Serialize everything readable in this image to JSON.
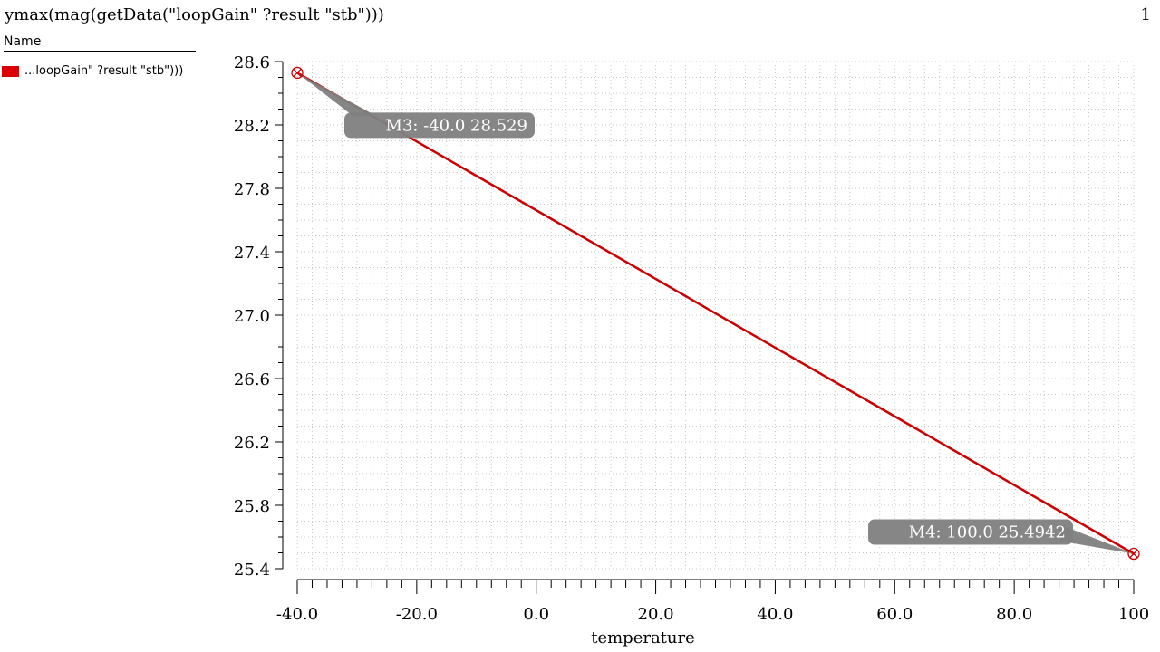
{
  "header": {
    "title": "ymax(mag(getData(\"loopGain\" ?result \"stb\")))",
    "page_number": "1"
  },
  "legend": {
    "header": "Name",
    "items": [
      {
        "label": "...loopGain\" ?result \"stb\")))",
        "color": "#dd0000"
      }
    ]
  },
  "colors": {
    "series": "#cc0000",
    "marker_bubble": "#808080",
    "marker_text": "#ffffff",
    "grid": "#c8c8c8"
  },
  "chart_data": {
    "type": "line",
    "title": "ymax(mag(getData(\"loopGain\" ?result \"stb\")))",
    "xlabel": "temperature",
    "ylabel": "",
    "xlim": [
      -40,
      100
    ],
    "ylim": [
      25.4,
      28.6
    ],
    "xticks": [
      -40,
      -20,
      0,
      20,
      40,
      60,
      80,
      100
    ],
    "xtick_labels": [
      "-40.0",
      "-20.0",
      "0.0",
      "20.0",
      "40.0",
      "60.0",
      "80.0",
      "100"
    ],
    "yticks": [
      25.4,
      25.8,
      26.2,
      26.6,
      27.0,
      27.4,
      27.8,
      28.2,
      28.6
    ],
    "ytick_labels": [
      "25.4",
      "25.8",
      "26.2",
      "26.6",
      "27.0",
      "27.4",
      "27.8",
      "28.2",
      "28.6"
    ],
    "grid": true,
    "legend_position": "top-left",
    "series": [
      {
        "name": "...loopGain\" ?result \"stb\")))",
        "x": [
          -40,
          100
        ],
        "y": [
          28.529,
          25.4942
        ]
      }
    ],
    "markers": [
      {
        "label": "M3: -40.0 28.529",
        "x": -40.0,
        "y": 28.529,
        "side": "below-right"
      },
      {
        "label": "M4: 100.0 25.4942",
        "x": 100.0,
        "y": 25.4942,
        "side": "left"
      }
    ]
  }
}
